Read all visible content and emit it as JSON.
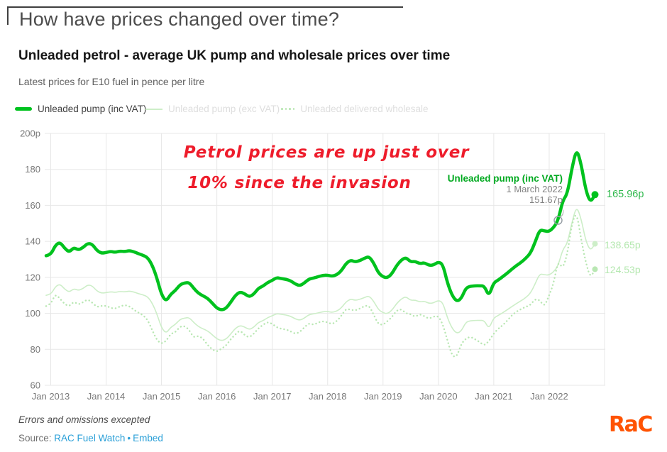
{
  "header": {
    "title": "How have prices changed over time?",
    "chart_title": "Unleaded petrol - average UK pump and wholesale prices over time",
    "chart_subtitle": "Latest prices for E10 fuel in pence per litre"
  },
  "legend": {
    "items": [
      {
        "label": "Unleaded pump (inc VAT)",
        "swatch": "thick-line",
        "color": "#00c21e",
        "active": true
      },
      {
        "label": "Unleaded pump (exc VAT)",
        "swatch": "thin-line",
        "color": "#cdeec8",
        "active": false
      },
      {
        "label": "Unleaded delivered wholesale",
        "swatch": "dotted-line",
        "color": "#b9e7b3",
        "active": false
      }
    ]
  },
  "annotation": {
    "line1": "Petrol prices are up just over",
    "line2": "10% since the invasion",
    "color": "#ee1c2b"
  },
  "tooltip": {
    "series": "Unleaded pump (inc VAT)",
    "date": "1 March 2022",
    "value": "151.67p"
  },
  "chart_data": {
    "type": "line",
    "x_unit": "month",
    "x_start": "Dec 2012",
    "x_end": "Nov 2022",
    "x_tick_labels": [
      "Jan 2013",
      "Jan 2014",
      "Jan 2015",
      "Jan 2016",
      "Jan 2017",
      "Jan 2018",
      "Jan 2019",
      "Jan 2020",
      "Jan 2021",
      "Jan 2022"
    ],
    "y_ticks": [
      200,
      180,
      160,
      140,
      120,
      100,
      80,
      60
    ],
    "y_tick_labels": [
      "200p",
      "180",
      "160",
      "140",
      "120",
      "100",
      "80",
      "60"
    ],
    "ylim": [
      60,
      200
    ],
    "grid": true,
    "legend_position": "top",
    "gridline_color": "#e7e7e7",
    "series": [
      {
        "name": "Unleaded pump (inc VAT)",
        "color": "#00c21e",
        "style": "solid",
        "width": 4.5,
        "end_label": "165.96p",
        "values": [
          132.0,
          132.5,
          137.8,
          139.6,
          136.2,
          134.0,
          136.6,
          135.2,
          136.6,
          138.9,
          138.4,
          134.9,
          133.4,
          133.8,
          134.4,
          133.9,
          134.6,
          134.3,
          134.9,
          134.3,
          133.1,
          132.3,
          131.0,
          126.8,
          119.8,
          110.4,
          106.6,
          110.6,
          112.6,
          115.9,
          116.9,
          117.2,
          113.9,
          111.2,
          109.7,
          108.4,
          105.7,
          102.9,
          101.8,
          102.7,
          106.1,
          109.9,
          111.9,
          111.0,
          109.1,
          110.6,
          113.9,
          115.1,
          117.1,
          118.3,
          119.9,
          119.3,
          118.9,
          118.1,
          116.3,
          115.3,
          116.9,
          119.1,
          119.6,
          120.4,
          121.1,
          121.3,
          120.6,
          121.4,
          123.6,
          127.6,
          129.6,
          128.6,
          129.3,
          130.6,
          131.6,
          128.1,
          122.6,
          120.3,
          119.7,
          122.1,
          126.6,
          129.6,
          131.1,
          128.6,
          128.9,
          127.6,
          128.2,
          126.6,
          126.9,
          128.6,
          127.3,
          117.0,
          110.0,
          106.6,
          108.1,
          114.1,
          115.1,
          115.3,
          115.3,
          115.2,
          109.5,
          116.9,
          118.5,
          120.4,
          122.4,
          124.6,
          126.6,
          128.4,
          130.6,
          133.4,
          139.4,
          146.4,
          145.8,
          145.4,
          147.6,
          151.67,
          162.6,
          166.4,
          180.6,
          191.6,
          183.0,
          168.4,
          161.6,
          165.96
        ]
      },
      {
        "name": "Unleaded pump (exc VAT)",
        "color": "#cdeec8",
        "style": "solid",
        "width": 1.6,
        "end_label": "138.65p",
        "values": [
          110.0,
          110.4,
          114.8,
          116.3,
          113.5,
          111.7,
          113.8,
          112.7,
          113.8,
          115.8,
          115.3,
          112.4,
          111.2,
          111.5,
          112.0,
          111.6,
          112.2,
          111.9,
          112.4,
          111.9,
          110.9,
          110.3,
          109.2,
          105.7,
          99.8,
          92.0,
          88.8,
          92.2,
          93.8,
          96.6,
          97.4,
          97.7,
          94.9,
          92.7,
          91.4,
          90.3,
          88.1,
          85.8,
          84.8,
          85.6,
          88.4,
          91.6,
          93.3,
          92.5,
          90.9,
          92.2,
          94.9,
          95.9,
          97.6,
          98.6,
          99.9,
          99.4,
          99.1,
          98.4,
          96.9,
          96.1,
          97.4,
          99.3,
          99.7,
          100.3,
          100.9,
          101.1,
          100.5,
          101.2,
          103.0,
          106.3,
          108.0,
          107.2,
          107.8,
          108.8,
          109.7,
          106.8,
          102.2,
          100.3,
          99.8,
          101.8,
          105.5,
          108.0,
          109.3,
          107.2,
          107.4,
          106.3,
          106.8,
          105.5,
          105.8,
          107.2,
          106.1,
          97.5,
          91.7,
          88.8,
          90.1,
          95.1,
          95.9,
          96.1,
          96.1,
          96.0,
          91.3,
          97.4,
          98.8,
          100.3,
          102.0,
          103.8,
          105.5,
          107.0,
          108.8,
          111.2,
          116.2,
          122.0,
          121.5,
          121.2,
          123.0,
          126.4,
          135.5,
          138.7,
          150.5,
          159.7,
          152.5,
          140.3,
          134.7,
          138.65
        ]
      },
      {
        "name": "Unleaded delivered wholesale",
        "color": "#b9e7b3",
        "style": "dotted",
        "width": 2.4,
        "end_label": "124.53p",
        "values": [
          104.0,
          105.0,
          110.8,
          108.2,
          105.2,
          103.8,
          106.6,
          104.8,
          106.2,
          107.8,
          106.0,
          103.4,
          104.2,
          104.2,
          103.0,
          102.6,
          103.8,
          104.6,
          104.0,
          102.0,
          100.4,
          99.0,
          96.4,
          90.6,
          85.2,
          83.0,
          84.6,
          88.6,
          89.4,
          92.6,
          93.0,
          90.8,
          86.4,
          87.6,
          86.0,
          82.4,
          80.0,
          78.6,
          80.4,
          82.0,
          85.6,
          88.2,
          90.6,
          88.0,
          86.6,
          88.6,
          91.6,
          93.6,
          95.2,
          94.2,
          92.2,
          91.4,
          91.0,
          90.0,
          88.6,
          89.6,
          92.2,
          94.6,
          93.6,
          95.0,
          95.6,
          95.0,
          94.0,
          95.6,
          98.6,
          102.6,
          102.0,
          101.6,
          102.6,
          104.0,
          104.4,
          99.4,
          94.0,
          93.6,
          95.6,
          98.0,
          101.6,
          102.4,
          100.0,
          99.6,
          98.0,
          99.6,
          98.4,
          97.0,
          98.2,
          98.6,
          94.0,
          85.0,
          76.4,
          75.6,
          83.0,
          86.0,
          87.0,
          85.6,
          84.0,
          82.0,
          84.6,
          88.6,
          91.4,
          93.4,
          96.0,
          99.0,
          101.0,
          102.4,
          103.6,
          104.6,
          108.0,
          107.4,
          103.6,
          109.6,
          116.4,
          129.4,
          124.6,
          133.0,
          150.0,
          156.6,
          141.0,
          128.4,
          119.6,
          124.53
        ]
      }
    ],
    "marker": {
      "series": 0,
      "index": 111,
      "label_date": "1 March 2022",
      "label_value": "151.67p"
    }
  },
  "footer": {
    "disclaimer": "Errors and omissions excepted",
    "source_label": "Source:",
    "link1": "RAC Fuel Watch",
    "separator": "•",
    "link2": "Embed",
    "logo_text": "RaC",
    "logo_color": "#ff5302"
  }
}
